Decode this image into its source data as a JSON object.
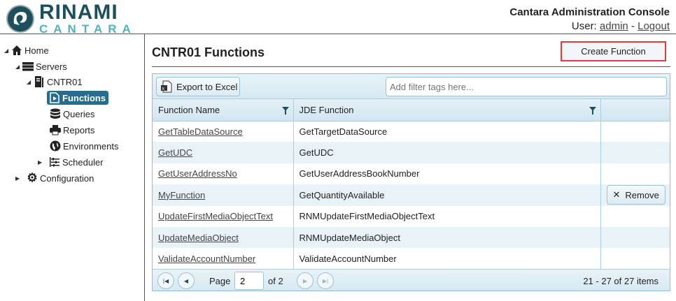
{
  "header": {
    "logo_top": "RINAMI",
    "logo_bottom": "CANTARA",
    "app_title": "Cantara Administration Console",
    "user_label": "User:",
    "username": "admin",
    "separator": "-",
    "logout": "Logout"
  },
  "sidebar": {
    "items": [
      {
        "label": "Home",
        "icon": "home-icon",
        "expanded": true
      },
      {
        "label": "Servers",
        "icon": "server-stack-icon",
        "expanded": true
      },
      {
        "label": "CNTR01",
        "icon": "server-icon",
        "expanded": true
      },
      {
        "label": "Functions",
        "icon": "function-file-icon",
        "selected": true
      },
      {
        "label": "Queries",
        "icon": "database-icon"
      },
      {
        "label": "Reports",
        "icon": "printer-icon"
      },
      {
        "label": "Environments",
        "icon": "globe-icon"
      },
      {
        "label": "Scheduler",
        "icon": "scheduler-icon",
        "expanded": false
      },
      {
        "label": "Configuration",
        "icon": "gear-icon",
        "expanded": false
      }
    ]
  },
  "main": {
    "title": "CNTR01 Functions",
    "create_button": "Create Function"
  },
  "grid": {
    "export_button": "Export to Excel",
    "filter_placeholder": "Add filter tags here...",
    "columns": [
      "Function Name",
      "JDE Function",
      ""
    ],
    "rows": [
      {
        "name": "GetTableDataSource",
        "jde": "GetTargetDataSource"
      },
      {
        "name": "GetUDC",
        "jde": "GetUDC"
      },
      {
        "name": "GetUserAddressNo",
        "jde": "GetUserAddressBookNumber"
      },
      {
        "name": "MyFunction",
        "jde": "GetQuantityAvailable",
        "action": "Remove"
      },
      {
        "name": "UpdateFirstMediaObjectText",
        "jde": "RNMUpdateFirstMediaObjectText"
      },
      {
        "name": "UpdateMediaObject",
        "jde": "RNMUpdateMediaObject"
      },
      {
        "name": "ValidateAccountNumber",
        "jde": "ValidateAccountNumber"
      }
    ],
    "pager": {
      "page_label": "Page",
      "page": "2",
      "of_label": "of 2",
      "summary": "21 - 27 of 27 items"
    }
  },
  "colors": {
    "accent": "#256d8c",
    "highlight": "#e03c3c",
    "grid_border": "#8fbfd4"
  }
}
